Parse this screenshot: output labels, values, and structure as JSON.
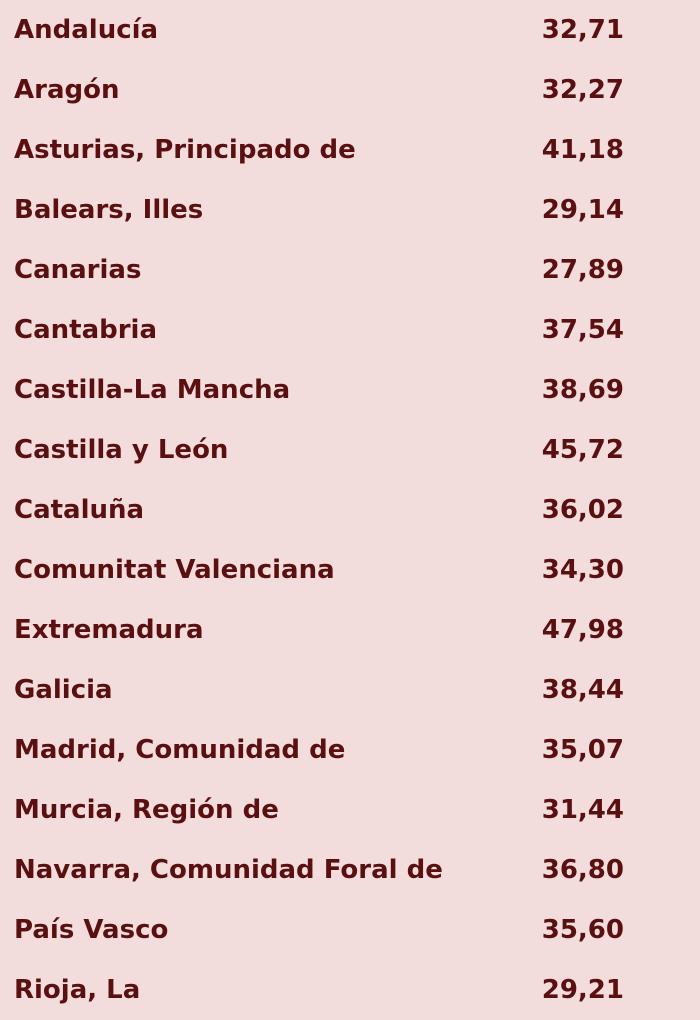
{
  "rows": [
    {
      "name": "Andalucía",
      "value": "32,71"
    },
    {
      "name": "Aragón",
      "value": "32,27"
    },
    {
      "name": "Asturias, Principado de",
      "value": "41,18"
    },
    {
      "name": "Balears, Illes",
      "value": "29,14"
    },
    {
      "name": "Canarias",
      "value": "27,89"
    },
    {
      "name": "Cantabria",
      "value": "37,54"
    },
    {
      "name": "Castilla-La Mancha",
      "value": "38,69"
    },
    {
      "name": "Castilla y León",
      "value": "45,72"
    },
    {
      "name": "Cataluña",
      "value": "36,02"
    },
    {
      "name": "Comunitat Valenciana",
      "value": "34,30"
    },
    {
      "name": "Extremadura",
      "value": "47,98"
    },
    {
      "name": "Galicia",
      "value": "38,44"
    },
    {
      "name": "Madrid, Comunidad de",
      "value": "35,07"
    },
    {
      "name": "Murcia, Región de",
      "value": "31,44"
    },
    {
      "name": "Navarra, Comunidad Foral de",
      "value": "36,80"
    },
    {
      "name": "País Vasco",
      "value": "35,60"
    },
    {
      "name": "Rioja, La",
      "value": "29,21"
    }
  ],
  "colors": {
    "background": "#f2dcdc",
    "text": "#5a1010"
  }
}
